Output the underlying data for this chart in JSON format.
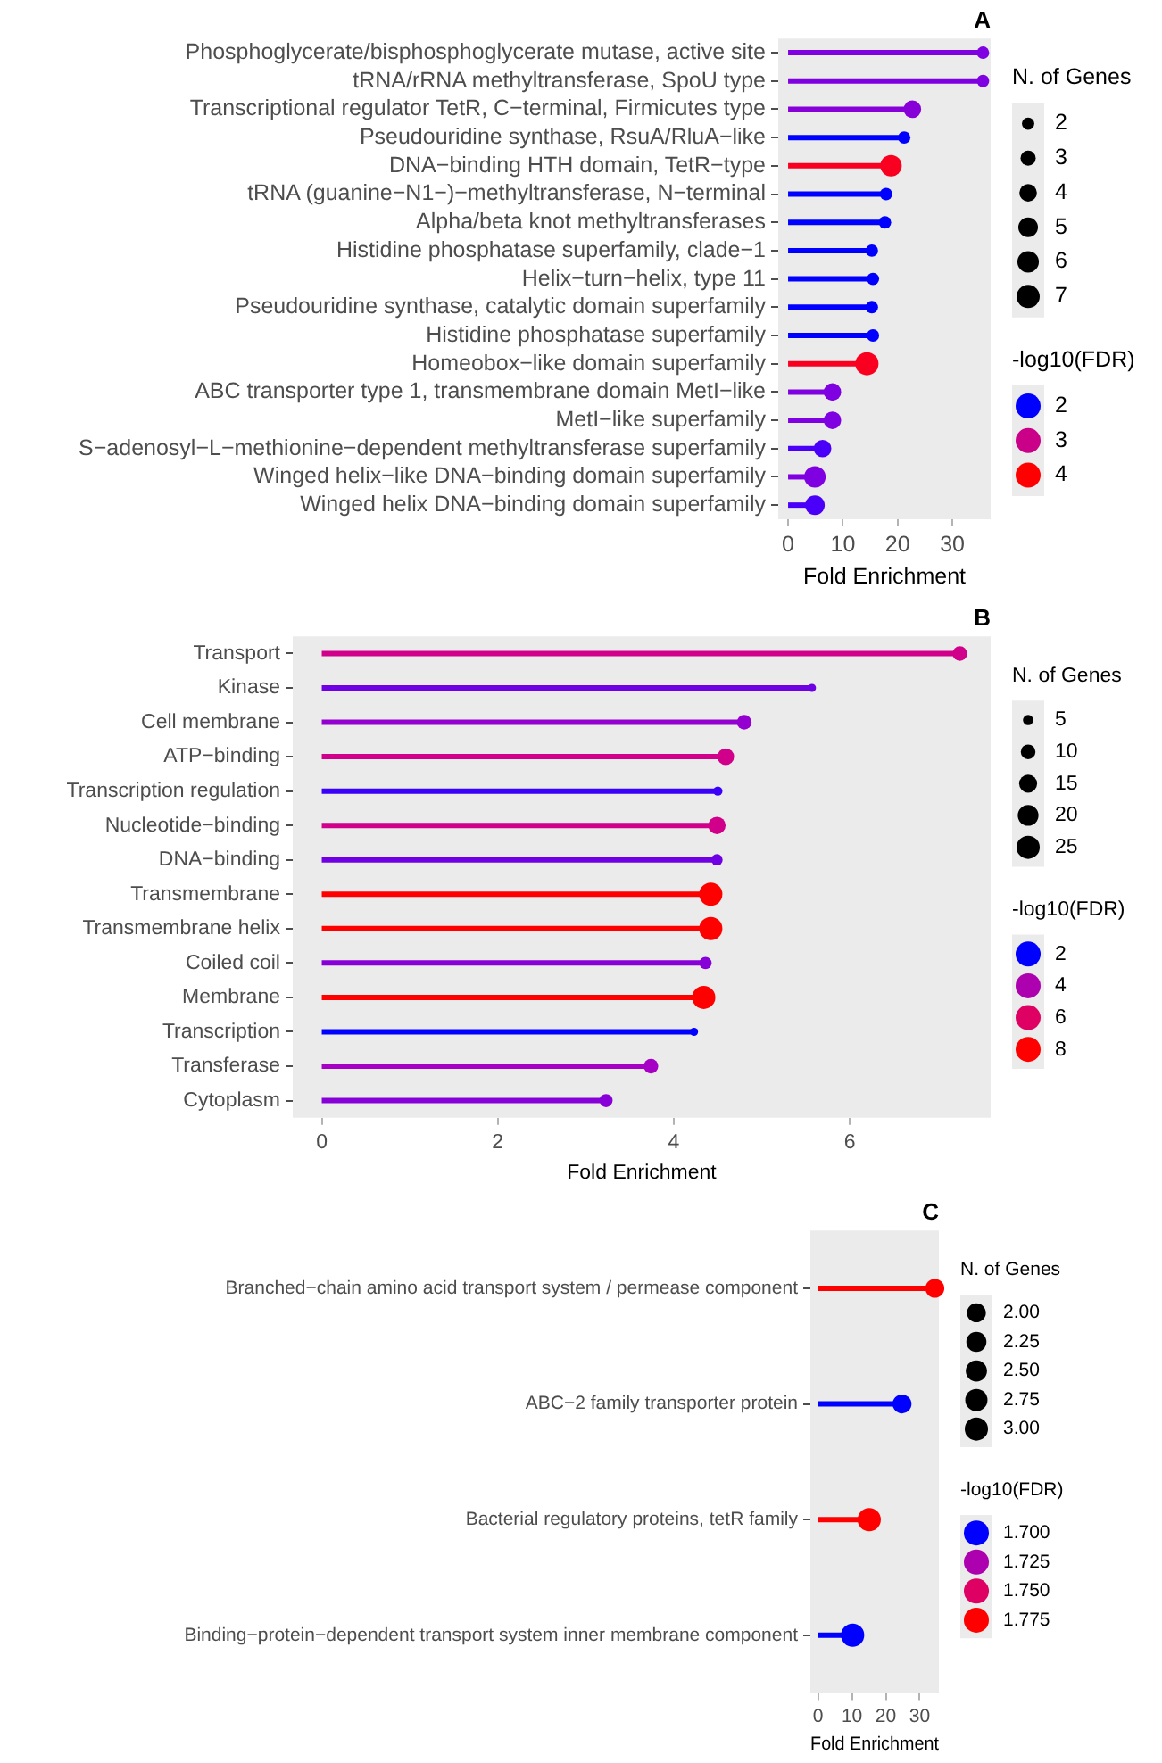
{
  "chart_data": [
    {
      "type": "lollipop",
      "title": "A",
      "orientation": "horizontal",
      "xlabel": "Fold Enrichment",
      "xlim": [
        -1.8,
        37
      ],
      "xticks": [
        0,
        10,
        20,
        30
      ],
      "grid": false,
      "legend_title": "N. of Genes",
      "clabel": "-log10(FDR)",
      "size_legend": [
        2,
        3,
        4,
        5,
        6,
        7
      ],
      "cticks": [
        2,
        3,
        4
      ],
      "categories": [
        "Phosphoglycerate/bisphosphoglycerate mutase, active site",
        "tRNA/rRNA methyltransferase, SpoU type",
        "Transcriptional regulator TetR, C−terminal, Firmicutes type",
        "Pseudouridine synthase, RsuA/RluA−like",
        "DNA−binding HTH domain, TetR−type",
        "tRNA (guanine−N1−)−methyltransferase, N−terminal",
        "Alpha/beta knot methyltransferases",
        "Histidine phosphatase superfamily, clade−1",
        "Helix−turn−helix, type 11",
        "Pseudouridine synthase, catalytic domain superfamily",
        "Histidine phosphatase superfamily",
        "Homeobox−like domain superfamily",
        "ABC transporter type 1, transmembrane domain MetI−like",
        "MetI−like superfamily",
        "S−adenosyl−L−methionine−dependent methyltransferase superfamily",
        "Winged helix−like DNA−binding domain superfamily",
        "Winged helix DNA−binding domain superfamily"
      ],
      "values": [
        35.6,
        35.6,
        22.7,
        21.2,
        18.8,
        17.9,
        17.7,
        15.3,
        15.5,
        15.3,
        15.5,
        14.4,
        8.1,
        8.1,
        6.3,
        4.9,
        4.9
      ],
      "sizes": [
        2,
        2,
        4,
        2,
        6,
        2,
        2,
        2,
        2,
        2,
        2,
        7,
        4,
        4,
        4,
        6,
        5
      ],
      "colors": [
        "#7f00e0",
        "#7f00e0",
        "#8800d8",
        "#0000ff",
        "#fa0020",
        "#0000ff",
        "#0000ff",
        "#0000ff",
        "#0000ff",
        "#0000ff",
        "#0000ff",
        "#fa0020",
        "#7f00e0",
        "#7f00e0",
        "#4a00f8",
        "#7f00e0",
        "#4a00f8"
      ]
    },
    {
      "type": "lollipop",
      "title": "B",
      "orientation": "horizontal",
      "xlabel": "Fold Enrichment",
      "xlim": [
        -0.33,
        7.6
      ],
      "xticks": [
        0,
        2,
        4,
        6
      ],
      "grid": false,
      "legend_title": "N. of Genes",
      "clabel": "-log10(FDR)",
      "size_legend": [
        5,
        10,
        15,
        20,
        25
      ],
      "cticks": [
        2,
        4,
        6,
        8
      ],
      "categories": [
        "Transport",
        "Kinase",
        "Cell membrane",
        "ATP−binding",
        "Transcription regulation",
        "Nucleotide−binding",
        "DNA−binding",
        "Transmembrane",
        "Transmembrane helix",
        "Coiled coil",
        "Membrane",
        "Transcription",
        "Transferase",
        "Cytoplasm"
      ],
      "values": [
        7.25,
        5.57,
        4.8,
        4.59,
        4.5,
        4.49,
        4.49,
        4.42,
        4.42,
        4.36,
        4.34,
        4.23,
        3.74,
        3.23
      ],
      "sizes": [
        10,
        3,
        10,
        13,
        4,
        14,
        6,
        25,
        25,
        7,
        25,
        3,
        10,
        8
      ],
      "colors": [
        "#d0008a",
        "#7000e4",
        "#9400d0",
        "#d0008a",
        "#3a00fa",
        "#d0008a",
        "#7000e4",
        "#ff0000",
        "#ff0000",
        "#8800d8",
        "#ff0000",
        "#0000ff",
        "#a500c3",
        "#8800d8"
      ]
    },
    {
      "type": "lollipop",
      "title": "C",
      "orientation": "horizontal",
      "xlabel": "Fold Enrichment",
      "xlim": [
        -2.3,
        35.7
      ],
      "xticks": [
        0,
        10,
        20,
        30
      ],
      "grid": false,
      "legend_title": "N. of Genes",
      "clabel": "-log10(FDR)",
      "size_legend": [
        {
          "value": 2,
          "label": "2.00"
        },
        {
          "value": 2.25,
          "label": "2.25"
        },
        {
          "value": 2.5,
          "label": "2.50"
        },
        {
          "value": 2.75,
          "label": "2.75"
        },
        {
          "value": 3,
          "label": "3.00"
        }
      ],
      "cticks": [
        {
          "value": 1.7,
          "label": "1.700"
        },
        {
          "value": 1.725,
          "label": "1.725"
        },
        {
          "value": 1.75,
          "label": "1.750"
        },
        {
          "value": 1.775,
          "label": "1.775"
        }
      ],
      "categories": [
        "Branched−chain amino acid transport system / permease component",
        "ABC−2 family transporter protein",
        "Bacterial regulatory proteins, tetR family",
        "Binding−protein−dependent transport system inner membrane component"
      ],
      "values": [
        34.5,
        24.8,
        15.1,
        10.2
      ],
      "sizes": [
        2,
        2,
        3,
        3
      ],
      "colors": [
        "#ff0000",
        "#0000ff",
        "#ff0000",
        "#0000ff"
      ]
    }
  ]
}
